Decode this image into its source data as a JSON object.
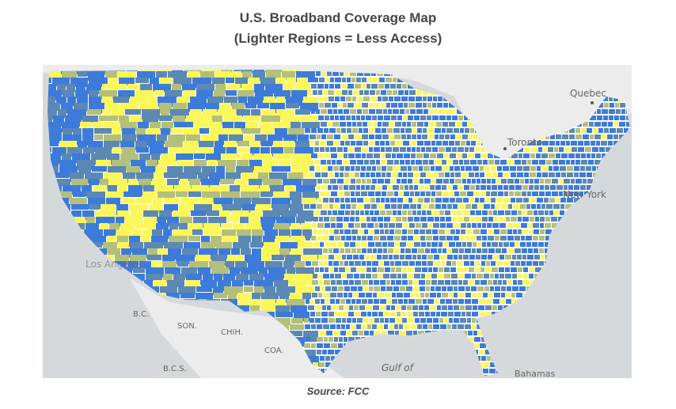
{
  "title": {
    "line1": "U.S. Broadband Coverage Map",
    "line2": "(Lighter Regions = Less Access)"
  },
  "source": "Source: FCC",
  "map": {
    "colors": {
      "water": "#d6d9db",
      "land": "#efefef",
      "border": "#ffffff",
      "high_access": "#3d7bdb",
      "mid_high": "#5b88b4",
      "mid_low": "#b3bf7a",
      "low_access": "#fbf75a"
    },
    "labels": {
      "quebec": "Quebec",
      "toronto": "Toronto",
      "new_york": "New York",
      "los_angeles": "Los Angeles",
      "bc": "B.C.",
      "son": "SON.",
      "chih": "CHIH.",
      "coa": "COA.",
      "bcs": "B.C.S.",
      "gulf": "Gulf of",
      "bahamas": "Bahamas"
    }
  }
}
